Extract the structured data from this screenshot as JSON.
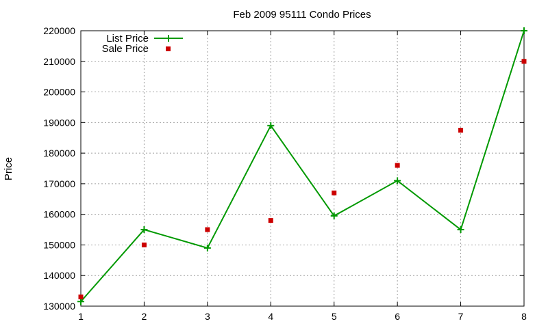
{
  "chart_data": {
    "type": "line",
    "title": "Feb 2009 95111 Condo Prices",
    "xlabel": "",
    "ylabel": "Price",
    "xlim": [
      1,
      8
    ],
    "ylim": [
      130000,
      220000
    ],
    "x_ticks": [
      "1",
      "2",
      "3",
      "4",
      "5",
      "6",
      "7",
      "8"
    ],
    "y_ticks": [
      "130000",
      "140000",
      "150000",
      "160000",
      "170000",
      "180000",
      "190000",
      "200000",
      "210000",
      "220000"
    ],
    "grid": true,
    "legend_position": "top-left",
    "x": [
      1,
      2,
      3,
      4,
      5,
      6,
      7,
      8
    ],
    "series": [
      {
        "name": "List Price",
        "style": "lines+points",
        "color": "#009900",
        "values": [
          131500,
          155000,
          149000,
          189000,
          159500,
          171000,
          155000,
          220000
        ]
      },
      {
        "name": "Sale Price",
        "style": "points",
        "color": "#cc0000",
        "values": [
          133000,
          150000,
          155000,
          158000,
          167000,
          176000,
          187500,
          210000
        ]
      }
    ]
  }
}
